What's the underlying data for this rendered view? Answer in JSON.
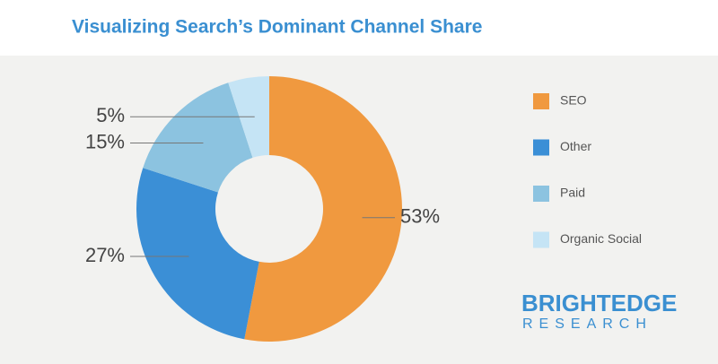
{
  "chart_data": {
    "type": "donut",
    "title": "Visualizing Search’s Dominant Channel Share",
    "categories": [
      "SEO",
      "Other",
      "Paid",
      "Organic Social"
    ],
    "values": [
      53,
      27,
      15,
      5
    ],
    "value_labels": [
      "53%",
      "27%",
      "15%",
      "5%"
    ],
    "colors": [
      "#f0993f",
      "#3b8fd6",
      "#8cc3e0",
      "#c5e4f5"
    ],
    "legend": "right"
  },
  "branding": {
    "name": "BRIGHTEDGE",
    "sub": "RESEARCH"
  }
}
